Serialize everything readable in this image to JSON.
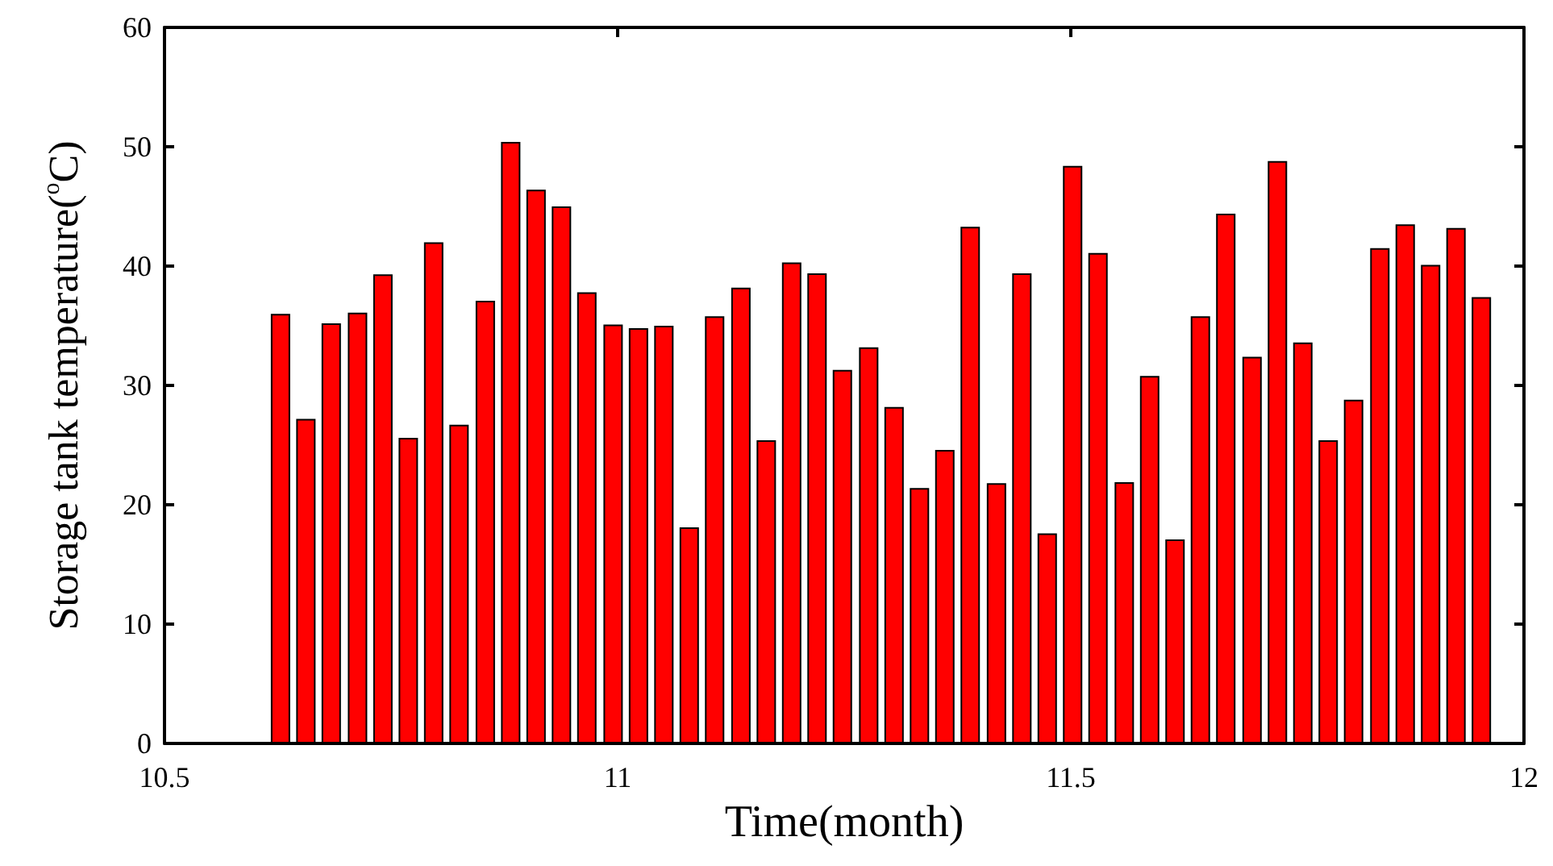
{
  "chart_data": {
    "type": "bar",
    "xlabel": "Time(month)",
    "ylabel": "Storage tank temperature($^{o}$C)",
    "x": [
      10.628,
      10.656,
      10.684,
      10.713,
      10.741,
      10.769,
      10.797,
      10.825,
      10.854,
      10.882,
      10.91,
      10.938,
      10.966,
      10.995,
      11.023,
      11.051,
      11.079,
      11.107,
      11.136,
      11.164,
      11.192,
      11.22,
      11.248,
      11.277,
      11.305,
      11.333,
      11.361,
      11.389,
      11.418,
      11.446,
      11.474,
      11.502,
      11.53,
      11.559,
      11.587,
      11.615,
      11.643,
      11.671,
      11.7,
      11.728,
      11.756,
      11.784,
      11.812,
      11.841,
      11.869,
      11.897,
      11.925,
      11.953
    ],
    "values": [
      36,
      27.2,
      35.2,
      36.1,
      39.3,
      25.6,
      42,
      26.7,
      37.1,
      50.4,
      46.4,
      45,
      37.8,
      35.1,
      34.8,
      35,
      18.1,
      35.8,
      38.2,
      25.4,
      40.3,
      39.4,
      31.3,
      33.2,
      28.2,
      21.4,
      24.6,
      43.3,
      21.8,
      39.4,
      17.6,
      48.4,
      41.1,
      21.9,
      30.8,
      17.1,
      35.8,
      44.4,
      32.4,
      48.8,
      33.6,
      25.4,
      28.8,
      41.5,
      43.5,
      40.1,
      43.2,
      37.4
    ],
    "color": "#ff0000",
    "xlim": [
      10.5,
      12
    ],
    "xticks": [
      10.5,
      11,
      11.5,
      12
    ],
    "ylim": [
      0,
      60
    ],
    "yticks": [
      0,
      10,
      20,
      30,
      40,
      50,
      60
    ],
    "grid": false
  }
}
